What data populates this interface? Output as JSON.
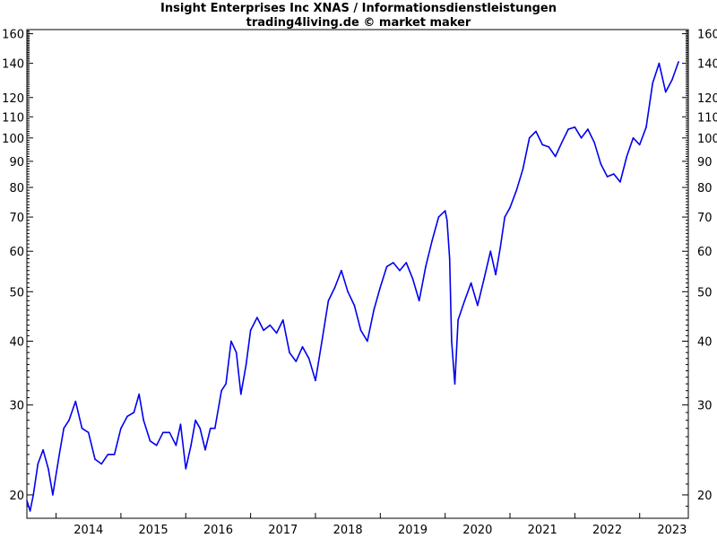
{
  "chart_data": {
    "type": "line",
    "title": "Insight Enterprises Inc XNAS / Informationsdienstleistungen",
    "subtitle": "trading4living.de © market maker",
    "yscale": "log",
    "ylim": [
      18,
      163
    ],
    "xlim": [
      2013.55,
      2023.75
    ],
    "y_ticks": [
      20,
      30,
      40,
      50,
      60,
      70,
      80,
      90,
      100,
      110,
      120,
      140,
      160
    ],
    "x_ticks": [
      "2014",
      "2015",
      "2016",
      "2017",
      "2018",
      "2019",
      "2020",
      "2021",
      "2022",
      "2023"
    ],
    "grid": false,
    "series": [
      {
        "color": "#0000ee",
        "x": [
          2013.55,
          2013.6,
          2013.65,
          2013.72,
          2013.8,
          2013.88,
          2013.95,
          2014.05,
          2014.12,
          2014.2,
          2014.3,
          2014.4,
          2014.5,
          2014.6,
          2014.7,
          2014.8,
          2014.9,
          2015.0,
          2015.1,
          2015.2,
          2015.28,
          2015.35,
          2015.45,
          2015.55,
          2015.65,
          2015.75,
          2015.85,
          2015.92,
          2016.0,
          2016.08,
          2016.15,
          2016.22,
          2016.3,
          2016.38,
          2016.45,
          2016.55,
          2016.62,
          2016.7,
          2016.78,
          2016.85,
          2016.93,
          2017.0,
          2017.1,
          2017.2,
          2017.3,
          2017.4,
          2017.5,
          2017.6,
          2017.7,
          2017.8,
          2017.9,
          2018.0,
          2018.1,
          2018.2,
          2018.3,
          2018.4,
          2018.5,
          2018.6,
          2018.7,
          2018.8,
          2018.9,
          2019.0,
          2019.1,
          2019.2,
          2019.3,
          2019.4,
          2019.5,
          2019.6,
          2019.7,
          2019.8,
          2019.9,
          2020.0,
          2020.03,
          2020.07,
          2020.1,
          2020.15,
          2020.2,
          2020.3,
          2020.4,
          2020.5,
          2020.6,
          2020.7,
          2020.78,
          2020.85,
          2020.92,
          2021.0,
          2021.1,
          2021.2,
          2021.3,
          2021.4,
          2021.5,
          2021.6,
          2021.7,
          2021.8,
          2021.9,
          2022.0,
          2022.1,
          2022.2,
          2022.3,
          2022.4,
          2022.5,
          2022.6,
          2022.7,
          2022.8,
          2022.9,
          2023.0,
          2023.1,
          2023.2,
          2023.3,
          2023.4,
          2023.5,
          2023.6
        ],
        "y": [
          19.5,
          18.6,
          20.0,
          23.0,
          24.5,
          22.5,
          20.0,
          24.0,
          27.0,
          28.0,
          30.5,
          27.0,
          26.5,
          23.5,
          23.0,
          24.0,
          24.0,
          27.0,
          28.5,
          29.0,
          31.5,
          28.0,
          25.5,
          25.0,
          26.5,
          26.5,
          25.0,
          27.5,
          22.5,
          25.0,
          28.0,
          27.0,
          24.5,
          27.0,
          27.0,
          32.0,
          33.0,
          40.0,
          38.0,
          31.5,
          36.0,
          42.0,
          44.5,
          42.0,
          43.0,
          41.5,
          44.0,
          38.0,
          36.5,
          39.0,
          37.0,
          33.5,
          40.0,
          48.0,
          51.0,
          55.0,
          50.0,
          47.0,
          42.0,
          40.0,
          46.0,
          51.0,
          56.0,
          57.0,
          55.0,
          57.0,
          53.0,
          48.0,
          56.0,
          63.0,
          70.0,
          72.0,
          69.0,
          58.0,
          40.0,
          33.0,
          44.0,
          48.0,
          52.0,
          47.0,
          53.0,
          60.0,
          54.0,
          61.0,
          70.0,
          73.0,
          79.0,
          87.0,
          100.0,
          103.0,
          97.0,
          96.0,
          92.0,
          98.0,
          104.0,
          105.0,
          100.0,
          104.0,
          98.0,
          89.0,
          84.0,
          85.0,
          82.0,
          92.0,
          100.0,
          97.0,
          105.0,
          128.0,
          140.0,
          123.0,
          130.0,
          141.0
        ]
      }
    ]
  }
}
